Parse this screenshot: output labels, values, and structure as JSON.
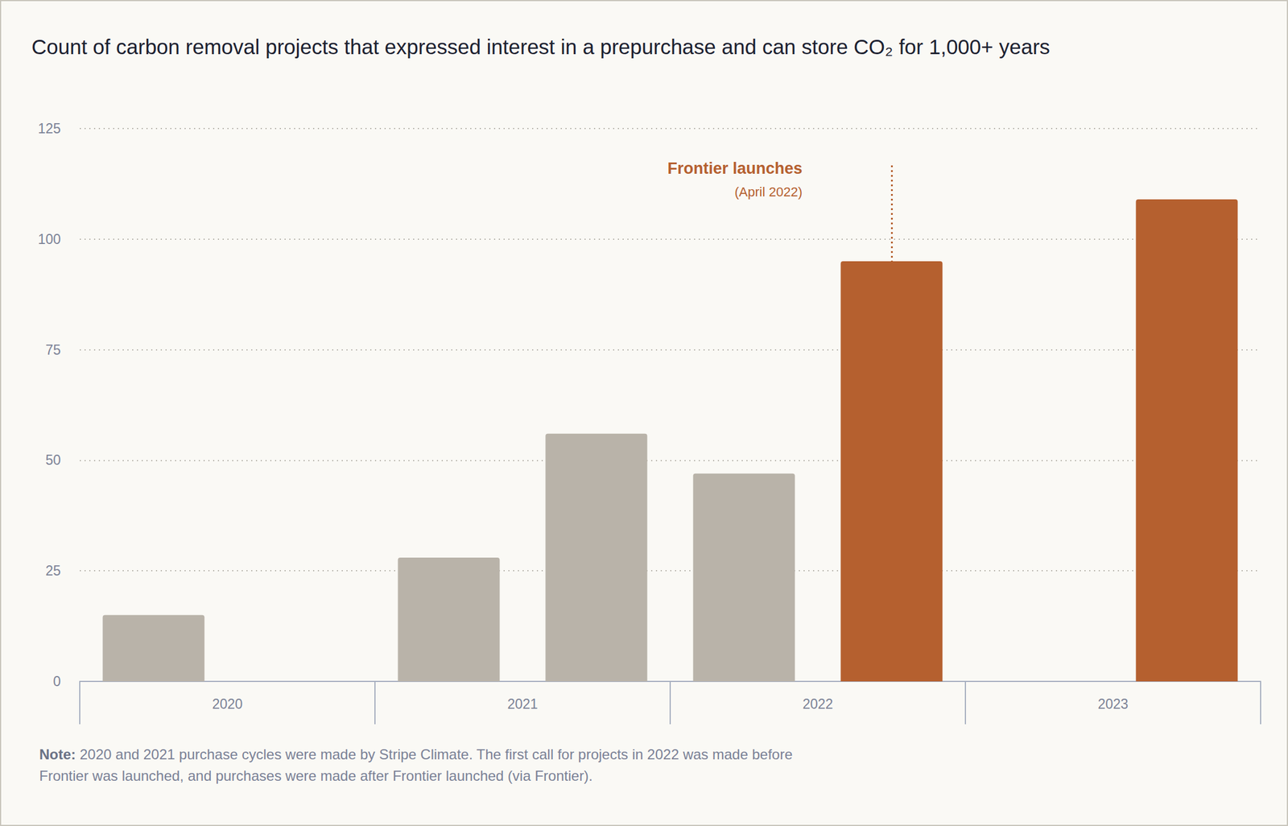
{
  "chart_data": {
    "type": "bar",
    "title": "Count of carbon removal projects that expressed interest in a prepurchase and can store CO₂ for 1,000+ years",
    "categories": [
      "2020",
      "2021",
      "2022",
      "2023"
    ],
    "series": [
      {
        "values": [
          15,
          28,
          47,
          null
        ],
        "colors": [
          "#b9b3a9",
          "#b9b3a9",
          "#b9b3a9",
          "#b9b3a9"
        ]
      },
      {
        "values": [
          null,
          56,
          95,
          109
        ],
        "colors": [
          "#b9b3a9",
          "#b9b3a9",
          "#b5602f",
          "#b5602f"
        ]
      }
    ],
    "ylim": [
      0,
      125
    ],
    "yticks": [
      0,
      25,
      50,
      75,
      100,
      125
    ],
    "grid": true,
    "annotations": [
      {
        "text": "Frontier launches",
        "subtext": "(April 2022)",
        "x": "2022",
        "y": 117
      }
    ],
    "note_label": "Note:",
    "note": "2020 and 2021 purchase cycles were made by Stripe Climate. The first call for projects in 2022 was made before Frontier was launched, and purchases were made after Frontier launched (via Frontier)."
  }
}
